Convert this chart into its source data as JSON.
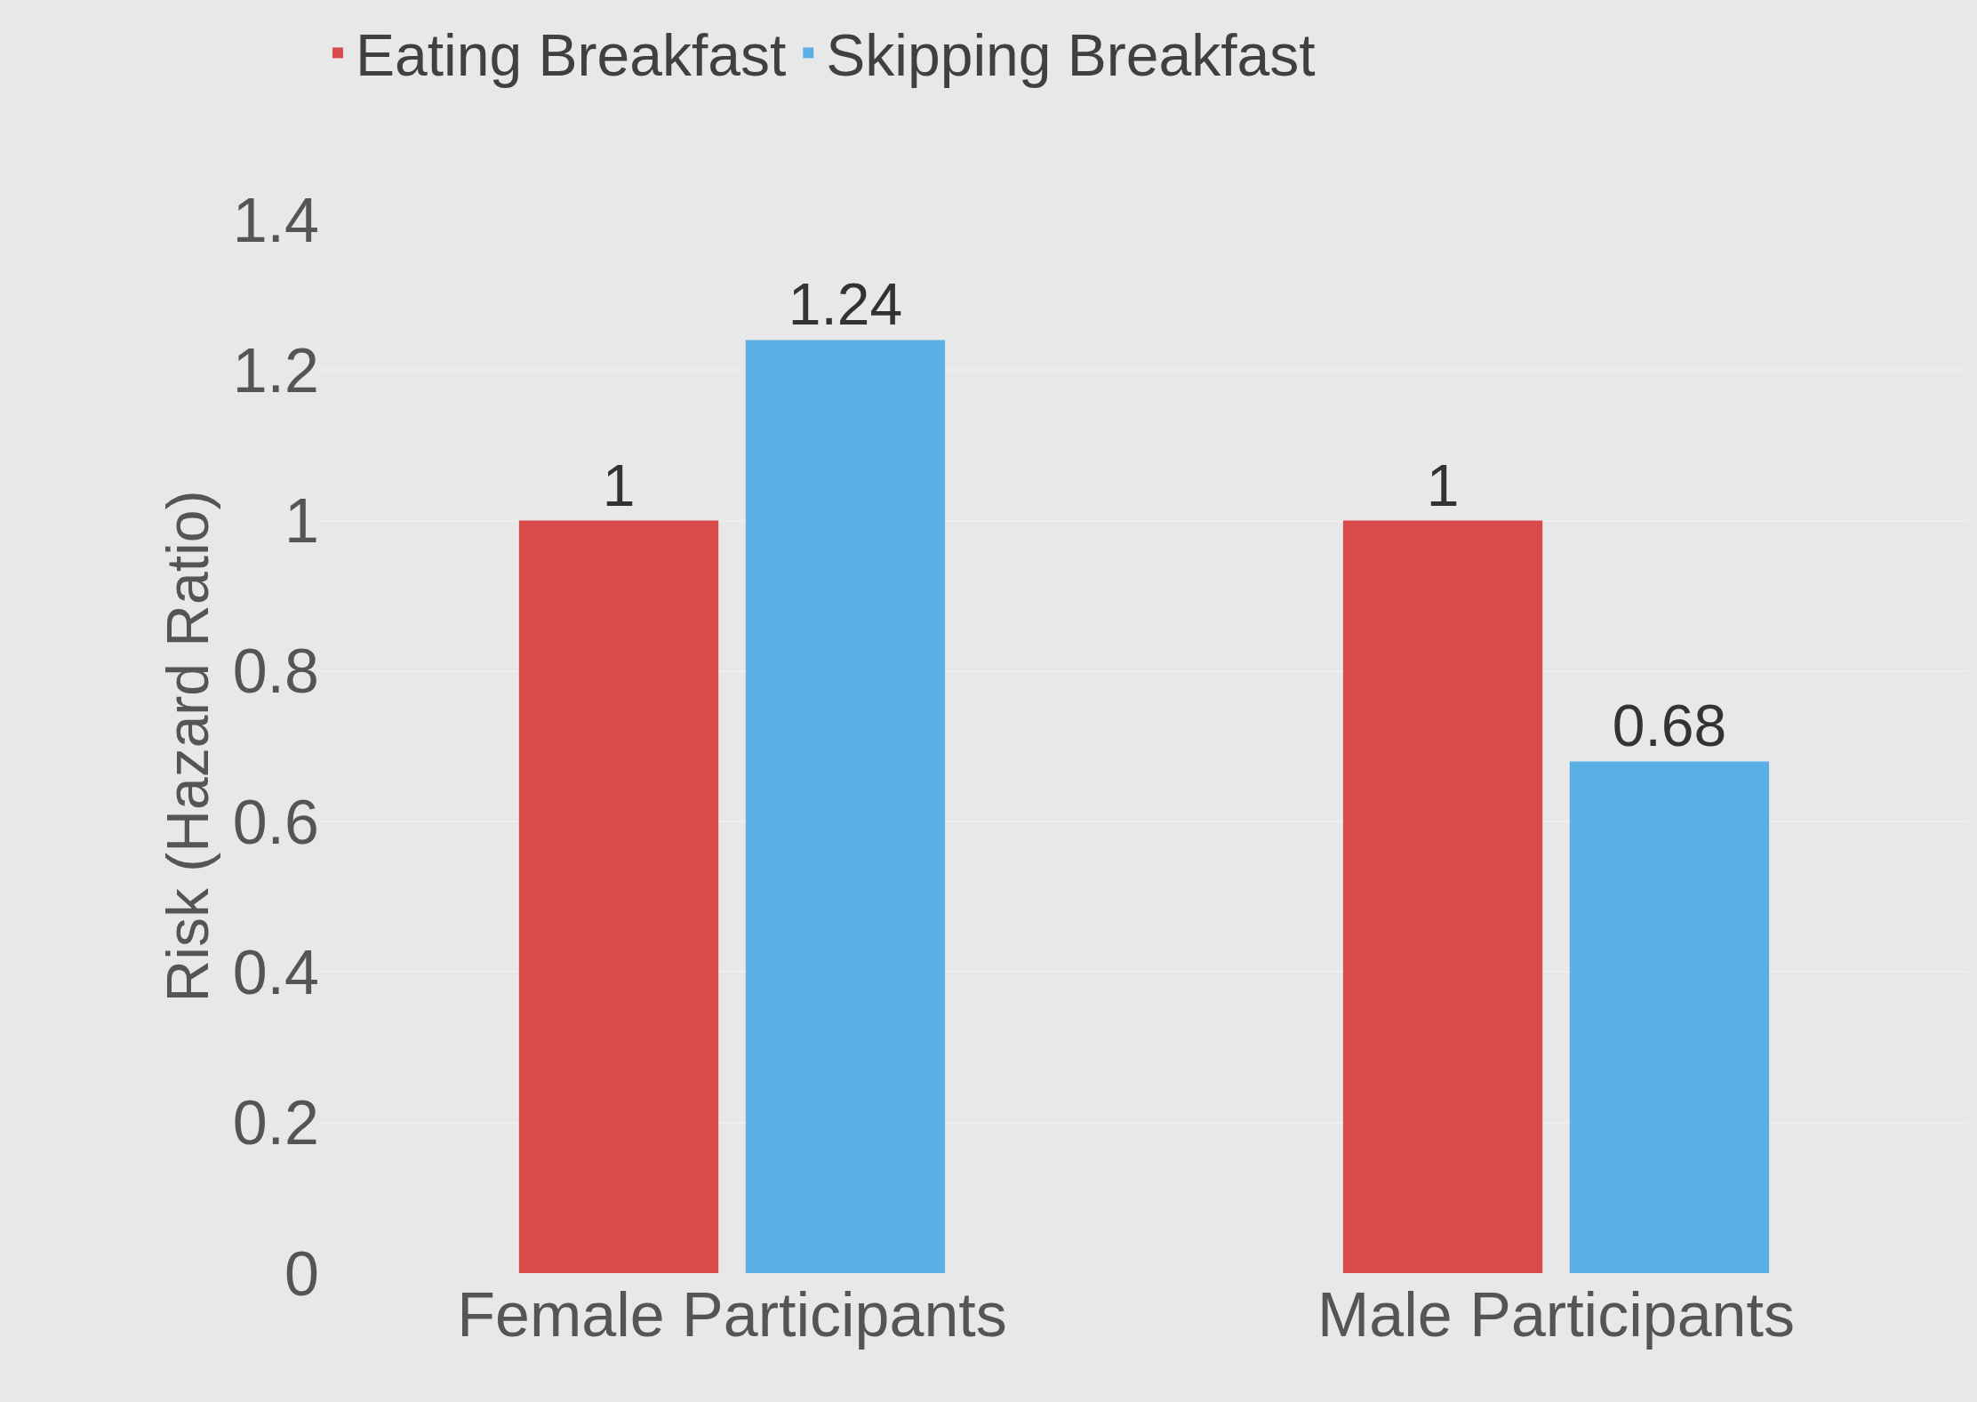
{
  "chart_data": {
    "type": "bar",
    "ylabel": "Risk (Hazard Ratio)",
    "categories": [
      "Female Participants",
      "Male Participants"
    ],
    "series": [
      {
        "name": "Eating Breakfast",
        "color": "#d94b4b",
        "values": [
          1,
          1
        ]
      },
      {
        "name": "Skipping Breakfast",
        "color": "#5ab0e4",
        "values": [
          1.24,
          0.68
        ]
      }
    ],
    "ylim": [
      0,
      1.4
    ],
    "yticks": [
      0,
      0.2,
      0.4,
      0.6,
      0.8,
      1,
      1.2,
      1.4
    ],
    "grid": "y",
    "legend": "top left",
    "data_labels": true
  }
}
